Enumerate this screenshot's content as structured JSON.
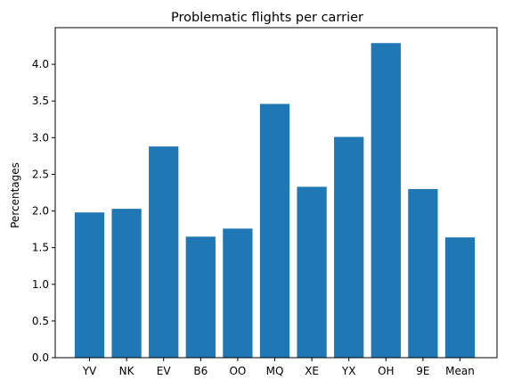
{
  "chart_data": {
    "type": "bar",
    "title": "Problematic flights per carrier",
    "xlabel": "",
    "ylabel": "Percentages",
    "categories": [
      "YV",
      "NK",
      "EV",
      "B6",
      "OO",
      "MQ",
      "XE",
      "YX",
      "OH",
      "9E",
      "Mean"
    ],
    "values": [
      1.98,
      2.03,
      2.88,
      1.65,
      1.76,
      3.46,
      2.33,
      3.01,
      4.29,
      2.3,
      1.64
    ],
    "ylim": [
      0,
      4.5
    ],
    "yticks": [
      "0.0",
      "0.5",
      "1.0",
      "1.5",
      "2.0",
      "2.5",
      "3.0",
      "3.5",
      "4.0"
    ],
    "bar_color": "#1f77b4",
    "grid": false,
    "legend": "none"
  }
}
